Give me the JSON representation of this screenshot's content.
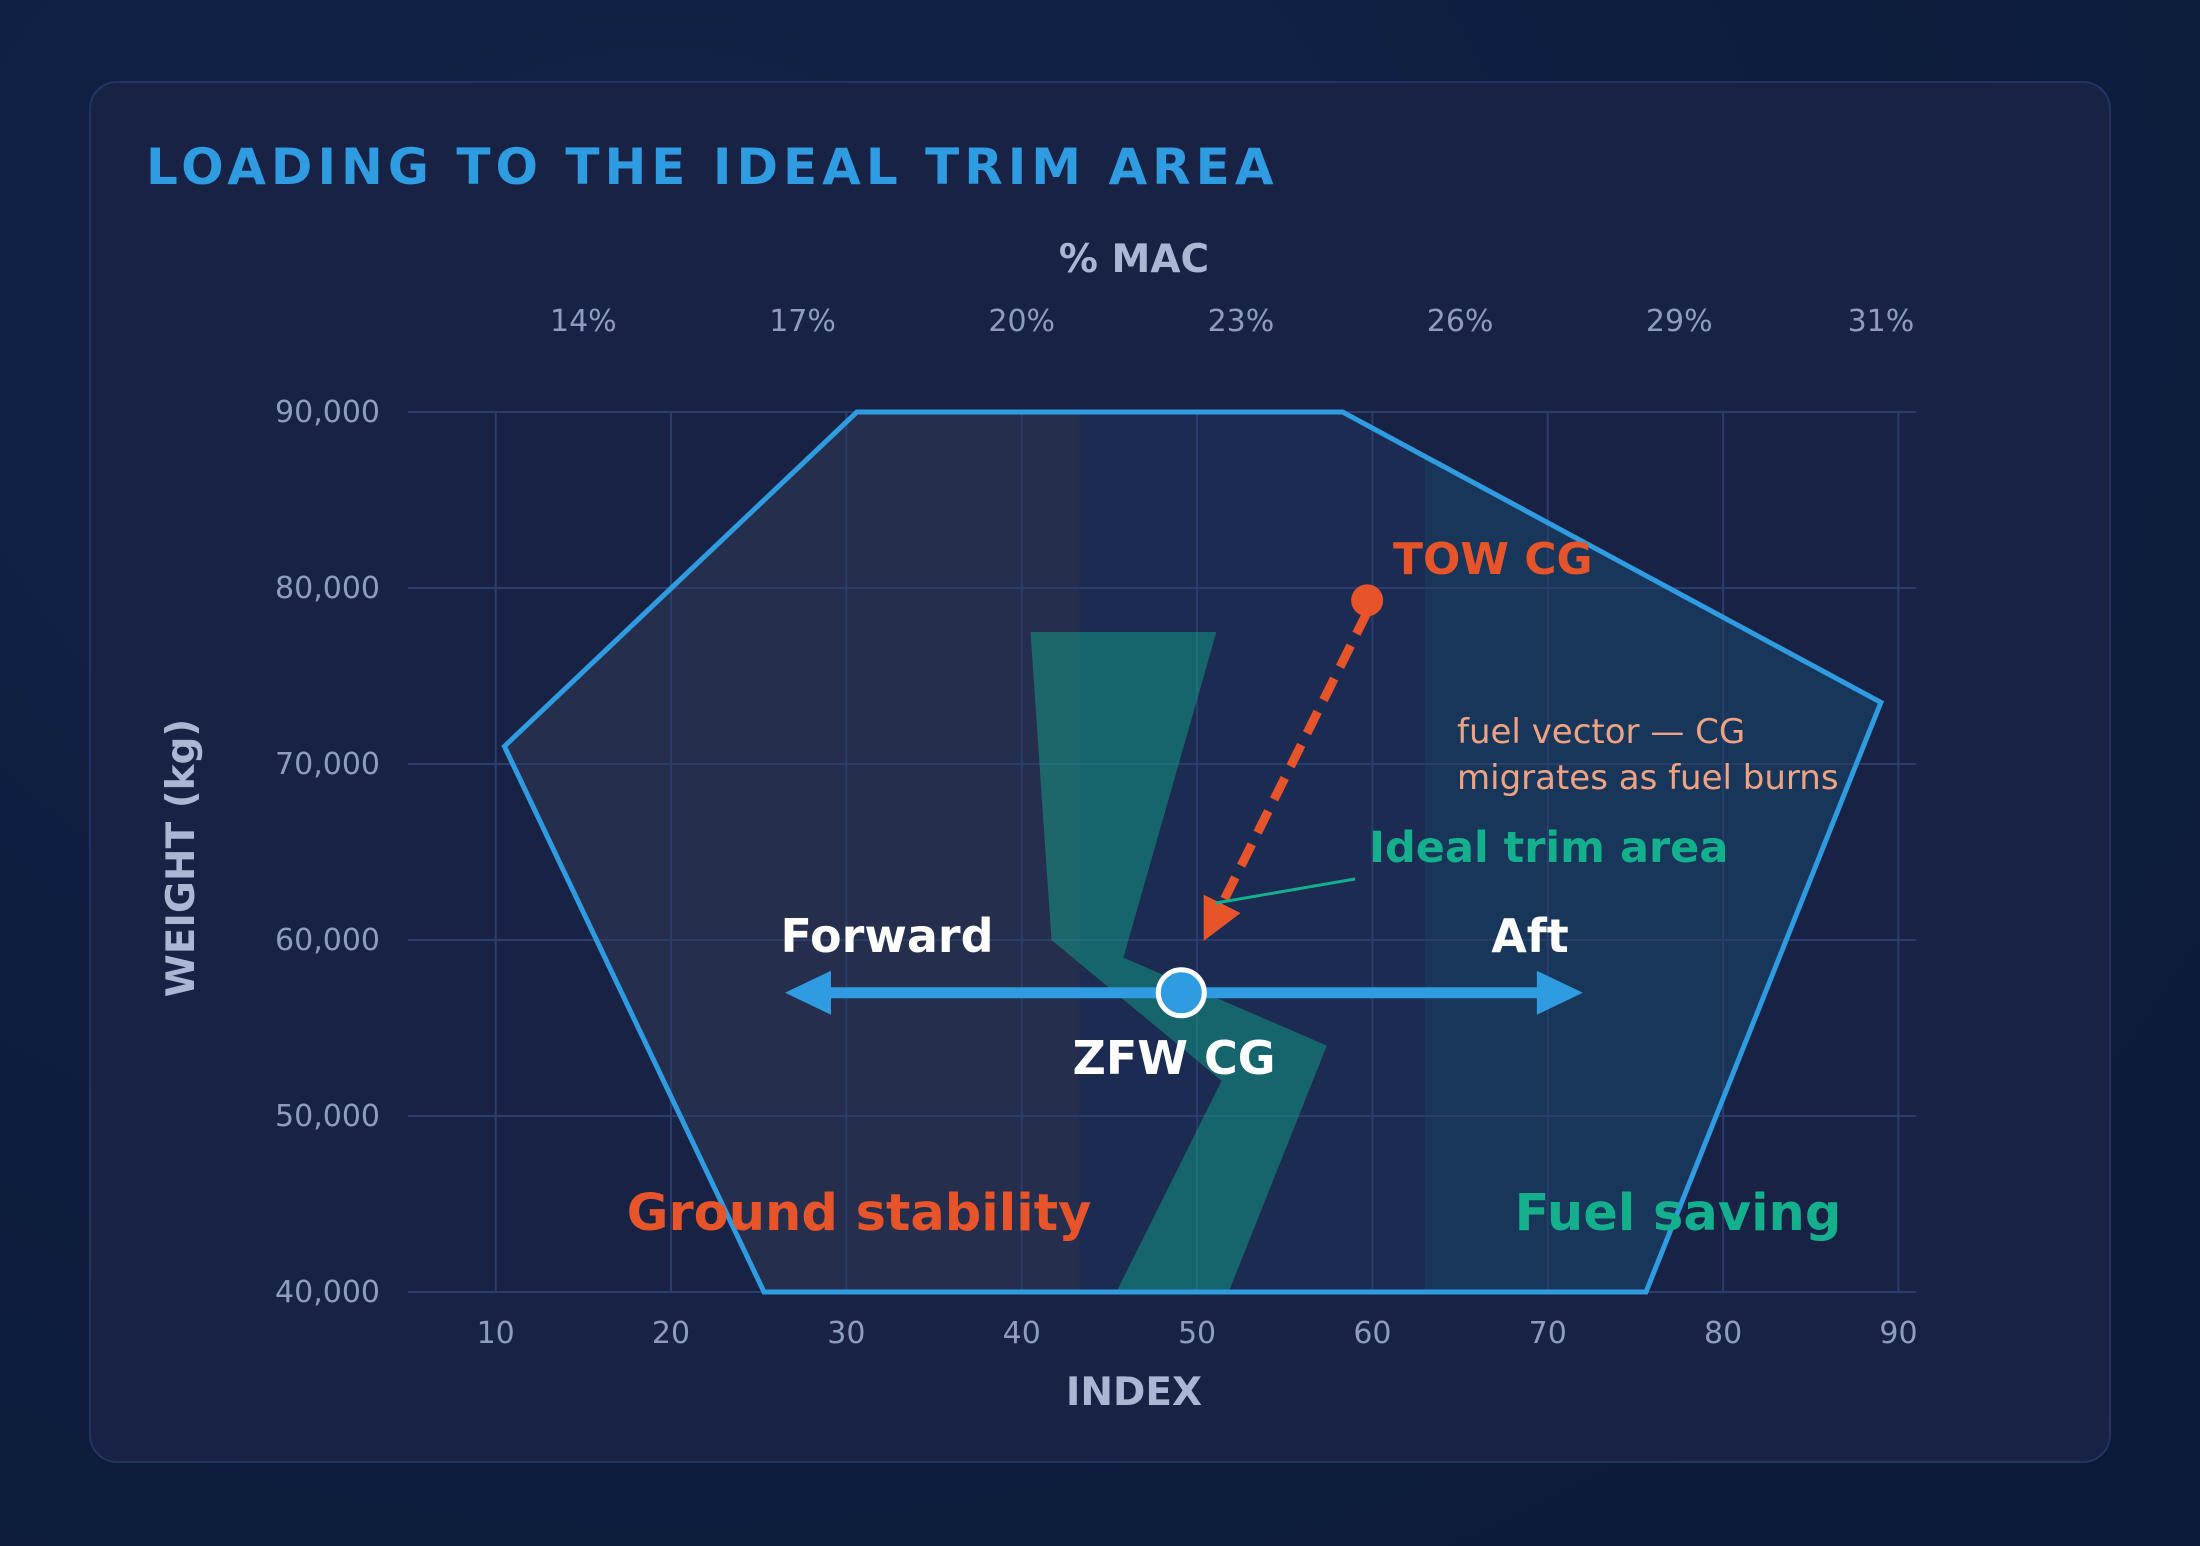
{
  "title": "LOADING TO THE IDEAL TRIM AREA",
  "chart_data": {
    "type": "scatter",
    "title": "LOADING TO THE IDEAL TRIM AREA",
    "xlabel": "INDEX",
    "ylabel": "WEIGHT (kg)",
    "top_axis_label": "% MAC",
    "xlim": [
      5,
      91
    ],
    "ylim": [
      40000,
      90000
    ],
    "x_ticks": [
      10,
      20,
      30,
      40,
      50,
      60,
      70,
      80,
      90
    ],
    "y_ticks": [
      40000,
      50000,
      60000,
      70000,
      80000,
      90000
    ],
    "x_tick_labels": [
      "10",
      "20",
      "30",
      "40",
      "50",
      "60",
      "70",
      "80",
      "90"
    ],
    "y_tick_labels": [
      "40,000",
      "50,000",
      "60,000",
      "70,000",
      "80,000",
      "90,000"
    ],
    "top_ticks": [
      {
        "label": "14%",
        "index": 15
      },
      {
        "label": "17%",
        "index": 27.5
      },
      {
        "label": "20%",
        "index": 40
      },
      {
        "label": "23%",
        "index": 52.5
      },
      {
        "label": "26%",
        "index": 65
      },
      {
        "label": "29%",
        "index": 77.5
      },
      {
        "label": "31%",
        "index": 89
      }
    ],
    "grid": true,
    "zones": {
      "forward_end_index": 43.3,
      "aft_start_index": 63.0
    },
    "envelope": [
      {
        "x": 30.6,
        "y": 90000
      },
      {
        "x": 58.3,
        "y": 90000
      },
      {
        "x": 89.0,
        "y": 73500
      },
      {
        "x": 75.6,
        "y": 40000
      },
      {
        "x": 25.3,
        "y": 40000
      },
      {
        "x": 10.5,
        "y": 71000
      }
    ],
    "ideal_trim_area": [
      {
        "x": 40.5,
        "y": 77500
      },
      {
        "x": 51.1,
        "y": 77500
      },
      {
        "x": 45.8,
        "y": 59000
      },
      {
        "x": 57.4,
        "y": 54000
      },
      {
        "x": 51.8,
        "y": 40000
      },
      {
        "x": 45.4,
        "y": 40000
      },
      {
        "x": 51.4,
        "y": 52000
      },
      {
        "x": 41.7,
        "y": 60000
      }
    ],
    "points": [
      {
        "name": "TOW CG",
        "x": 59.7,
        "y": 79300,
        "color": "#e8542a"
      },
      {
        "name": "ZFW CG",
        "x": 49.1,
        "y": 57000,
        "color": "#2f9be0"
      }
    ],
    "fuel_vector": {
      "from": {
        "x": 59.7,
        "y": 79300
      },
      "to": {
        "x": 50.8,
        "y": 60000
      }
    },
    "arrows": {
      "forward_to_index": 26.5,
      "aft_to_index": 72.0,
      "y": 57000
    },
    "labels": {
      "tow": "TOW CG",
      "zfw": "ZFW CG",
      "forward": "Forward",
      "aft": "Aft",
      "ideal": "Ideal trim area",
      "fuel_vector_line1": "fuel vector — CG",
      "fuel_vector_line2": "migrates as fuel burns",
      "ground": "Ground stability",
      "fuel_saving": "Fuel saving"
    },
    "colors": {
      "envelope": "#2f9be0",
      "accent_orange": "#e8542a",
      "accent_green": "#14b08e",
      "axis_text": "#8e9cc0",
      "annotation": "#f0a383"
    }
  }
}
